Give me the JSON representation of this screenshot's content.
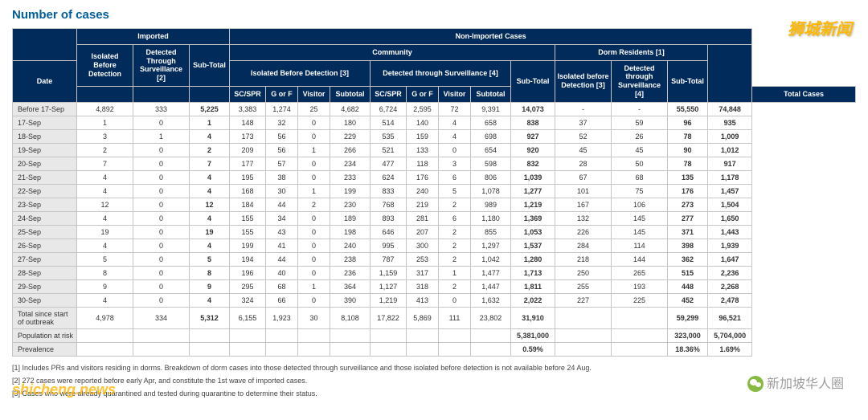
{
  "title": "Number of cases",
  "watermarks": {
    "top": "狮城新闻",
    "bottom_left": "shicheng.news",
    "bottom_right": "新加坡华人圈"
  },
  "headers": {
    "imported": "Imported",
    "nonimported": "Non-Imported Cases",
    "community": "Community",
    "dorm": "Dorm Residents [1]",
    "iso_before": "Isolated Before Detection",
    "det_surv": "Detected Through Surveillance [2]",
    "subtotal": "Sub-Total",
    "iso_before3": "Isolated Before Detection [3]",
    "det_surv4": "Detected through Surveillance [4]",
    "iso_before_d": "Isolated before Detection [3]",
    "det_surv_d": "Detected through Surveillance [4]",
    "date": "Date",
    "scspr": "SC/SPR",
    "gorf": "G or F",
    "visitor": "Visitor",
    "sub": "Subtotal",
    "total": "Total Cases"
  },
  "rows": [
    {
      "d": "Before 17-Sep",
      "i1": "4,892",
      "i2": "333",
      "ist": "5,225",
      "c1": "3,383",
      "c2": "1,274",
      "c3": "25",
      "c4": "4,682",
      "c5": "6,724",
      "c6": "2,595",
      "c7": "72",
      "c8": "9,391",
      "cst": "14,073",
      "d1": "-",
      "d2": "-",
      "dst": "55,550",
      "t": "74,848"
    },
    {
      "d": "17-Sep",
      "i1": "1",
      "i2": "0",
      "ist": "1",
      "c1": "148",
      "c2": "32",
      "c3": "0",
      "c4": "180",
      "c5": "514",
      "c6": "140",
      "c7": "4",
      "c8": "658",
      "cst": "838",
      "d1": "37",
      "d2": "59",
      "dst": "96",
      "t": "935"
    },
    {
      "d": "18-Sep",
      "i1": "3",
      "i2": "1",
      "ist": "4",
      "c1": "173",
      "c2": "56",
      "c3": "0",
      "c4": "229",
      "c5": "535",
      "c6": "159",
      "c7": "4",
      "c8": "698",
      "cst": "927",
      "d1": "52",
      "d2": "26",
      "dst": "78",
      "t": "1,009"
    },
    {
      "d": "19-Sep",
      "i1": "2",
      "i2": "0",
      "ist": "2",
      "c1": "209",
      "c2": "56",
      "c3": "1",
      "c4": "266",
      "c5": "521",
      "c6": "133",
      "c7": "0",
      "c8": "654",
      "cst": "920",
      "d1": "45",
      "d2": "45",
      "dst": "90",
      "t": "1,012"
    },
    {
      "d": "20-Sep",
      "i1": "7",
      "i2": "0",
      "ist": "7",
      "c1": "177",
      "c2": "57",
      "c3": "0",
      "c4": "234",
      "c5": "477",
      "c6": "118",
      "c7": "3",
      "c8": "598",
      "cst": "832",
      "d1": "28",
      "d2": "50",
      "dst": "78",
      "t": "917"
    },
    {
      "d": "21-Sep",
      "i1": "4",
      "i2": "0",
      "ist": "4",
      "c1": "195",
      "c2": "38",
      "c3": "0",
      "c4": "233",
      "c5": "624",
      "c6": "176",
      "c7": "6",
      "c8": "806",
      "cst": "1,039",
      "d1": "67",
      "d2": "68",
      "dst": "135",
      "t": "1,178"
    },
    {
      "d": "22-Sep",
      "i1": "4",
      "i2": "0",
      "ist": "4",
      "c1": "168",
      "c2": "30",
      "c3": "1",
      "c4": "199",
      "c5": "833",
      "c6": "240",
      "c7": "5",
      "c8": "1,078",
      "cst": "1,277",
      "d1": "101",
      "d2": "75",
      "dst": "176",
      "t": "1,457"
    },
    {
      "d": "23-Sep",
      "i1": "12",
      "i2": "0",
      "ist": "12",
      "c1": "184",
      "c2": "44",
      "c3": "2",
      "c4": "230",
      "c5": "768",
      "c6": "219",
      "c7": "2",
      "c8": "989",
      "cst": "1,219",
      "d1": "167",
      "d2": "106",
      "dst": "273",
      "t": "1,504"
    },
    {
      "d": "24-Sep",
      "i1": "4",
      "i2": "0",
      "ist": "4",
      "c1": "155",
      "c2": "34",
      "c3": "0",
      "c4": "189",
      "c5": "893",
      "c6": "281",
      "c7": "6",
      "c8": "1,180",
      "cst": "1,369",
      "d1": "132",
      "d2": "145",
      "dst": "277",
      "t": "1,650"
    },
    {
      "d": "25-Sep",
      "i1": "19",
      "i2": "0",
      "ist": "19",
      "c1": "155",
      "c2": "43",
      "c3": "0",
      "c4": "198",
      "c5": "646",
      "c6": "207",
      "c7": "2",
      "c8": "855",
      "cst": "1,053",
      "d1": "226",
      "d2": "145",
      "dst": "371",
      "t": "1,443"
    },
    {
      "d": "26-Sep",
      "i1": "4",
      "i2": "0",
      "ist": "4",
      "c1": "199",
      "c2": "41",
      "c3": "0",
      "c4": "240",
      "c5": "995",
      "c6": "300",
      "c7": "2",
      "c8": "1,297",
      "cst": "1,537",
      "d1": "284",
      "d2": "114",
      "dst": "398",
      "t": "1,939"
    },
    {
      "d": "27-Sep",
      "i1": "5",
      "i2": "0",
      "ist": "5",
      "c1": "194",
      "c2": "44",
      "c3": "0",
      "c4": "238",
      "c5": "787",
      "c6": "253",
      "c7": "2",
      "c8": "1,042",
      "cst": "1,280",
      "d1": "218",
      "d2": "144",
      "dst": "362",
      "t": "1,647"
    },
    {
      "d": "28-Sep",
      "i1": "8",
      "i2": "0",
      "ist": "8",
      "c1": "196",
      "c2": "40",
      "c3": "0",
      "c4": "236",
      "c5": "1,159",
      "c6": "317",
      "c7": "1",
      "c8": "1,477",
      "cst": "1,713",
      "d1": "250",
      "d2": "265",
      "dst": "515",
      "t": "2,236"
    },
    {
      "d": "29-Sep",
      "i1": "9",
      "i2": "0",
      "ist": "9",
      "c1": "295",
      "c2": "68",
      "c3": "1",
      "c4": "364",
      "c5": "1,127",
      "c6": "318",
      "c7": "2",
      "c8": "1,447",
      "cst": "1,811",
      "d1": "255",
      "d2": "193",
      "dst": "448",
      "t": "2,268"
    },
    {
      "d": "30-Sep",
      "i1": "4",
      "i2": "0",
      "ist": "4",
      "c1": "324",
      "c2": "66",
      "c3": "0",
      "c4": "390",
      "c5": "1,219",
      "c6": "413",
      "c7": "0",
      "c8": "1,632",
      "cst": "2,022",
      "d1": "227",
      "d2": "225",
      "dst": "452",
      "t": "2,478"
    }
  ],
  "total_row": {
    "d": "Total since start of outbreak",
    "i1": "4,978",
    "i2": "334",
    "ist": "5,312",
    "c1": "6,155",
    "c2": "1,923",
    "c3": "30",
    "c4": "8,108",
    "c5": "17,822",
    "c6": "5,869",
    "c7": "111",
    "c8": "23,802",
    "cst": "31,910",
    "d1": "",
    "d2": "",
    "dst": "59,299",
    "t": "96,521"
  },
  "popn_row": {
    "d": "Population at risk",
    "cst": "5,381,000",
    "dst": "323,000",
    "t": "5,704,000"
  },
  "prev_row": {
    "d": "Prevalence",
    "cst": "0.59%",
    "dst": "18.36%",
    "t": "1.69%"
  },
  "footnotes": [
    "[1] Includes PRs and visitors residing in dorms. Breakdown of dorm cases into those detected through surveillance and those isolated before detection is not available before 24 Aug.",
    "[2] 272 cases were reported before early Apr, and constitute the 1st wave of imported cases.",
    "[3] Cases who were already quarantined and tested during quarantine to determine their status."
  ]
}
